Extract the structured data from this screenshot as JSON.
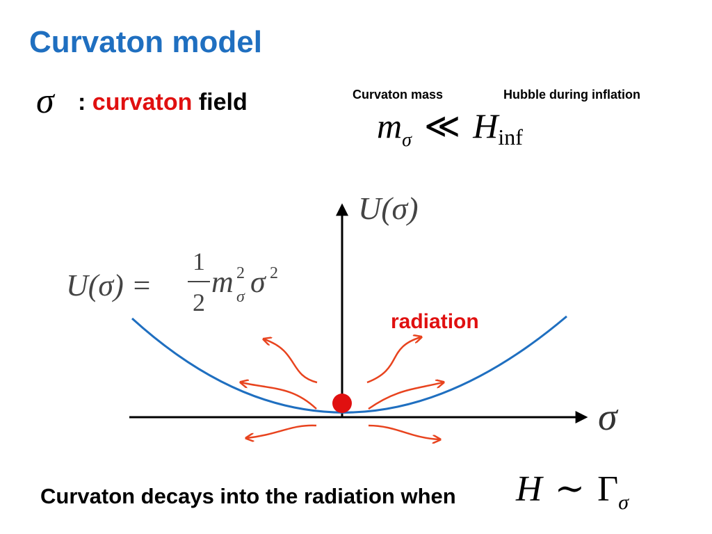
{
  "title": "Curvaton model",
  "definition": {
    "symbol": "σ",
    "colon": ":",
    "highlight": "curvaton",
    "rest": "field"
  },
  "labels": {
    "mass": "Curvaton mass",
    "hubble": "Hubble during inflation"
  },
  "condition": {
    "lhs": "m",
    "lhs_sub": "σ",
    "relation": "≪",
    "rhs": "H",
    "rhs_sub": "inf"
  },
  "potential": {
    "lhs": "U(σ) =",
    "numerator": "1",
    "denominator": "2",
    "m": "m",
    "m_sub": "σ",
    "m_sup": "2",
    "field": "σ",
    "field_sup": "2"
  },
  "axes": {
    "y_label": "U(σ)",
    "x_label": "σ"
  },
  "radiation_label": "radiation",
  "footer": {
    "text": "Curvaton decays into the radiation when",
    "lhs": "H",
    "relation": "∼",
    "rhs": "Γ",
    "rhs_sub": "σ"
  }
}
